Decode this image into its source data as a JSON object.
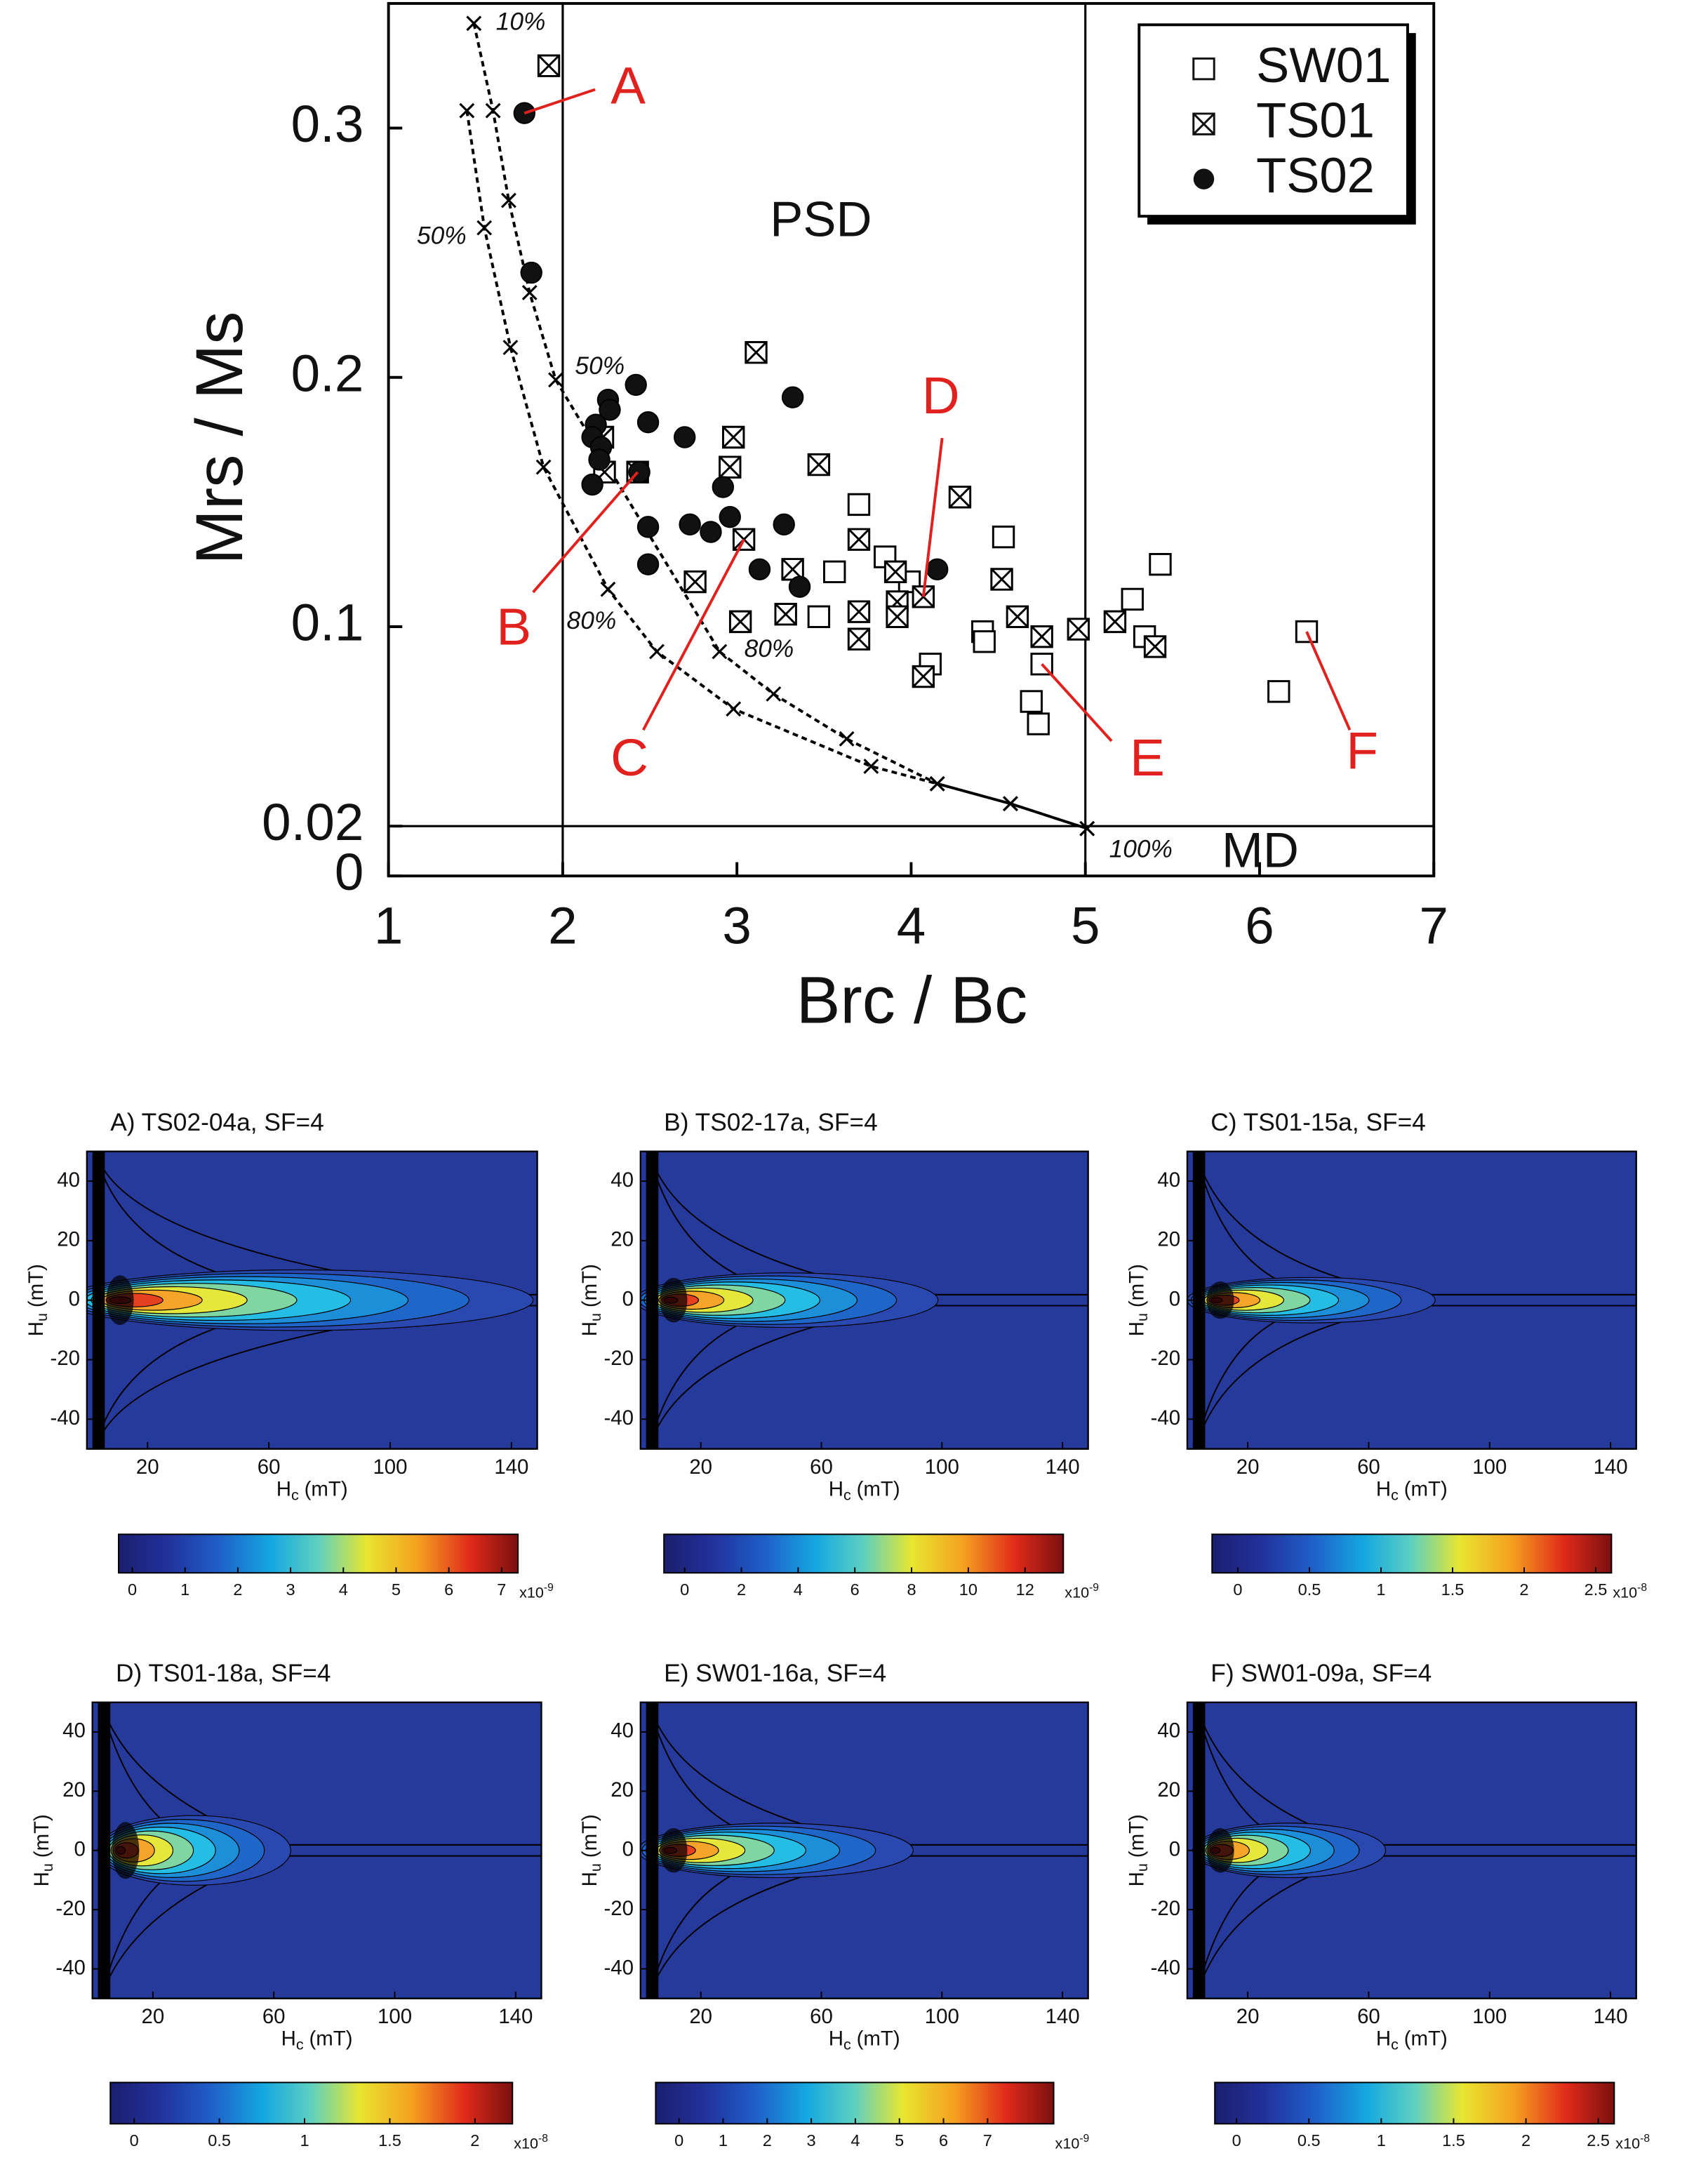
{
  "chart_data": [
    {
      "type": "scatter",
      "xlabel": "Brc / Bc",
      "ylabel": "Mrs / Ms",
      "xlim": [
        1,
        7
      ],
      "ylim": [
        0,
        0.35
      ],
      "xticks": [
        1,
        2,
        3,
        4,
        5,
        6,
        7
      ],
      "yticks": [
        0,
        0.02,
        0.1,
        0.2,
        0.3
      ],
      "reference_lines": {
        "x": [
          2,
          5
        ],
        "y": [
          0.02
        ]
      },
      "regions": [
        "PSD",
        "MD"
      ],
      "legend": "upper right",
      "series": [
        {
          "name": "SW01",
          "marker": "open-square",
          "color": "#000000",
          "x": [
            3.7,
            3.56,
            3.47,
            3.85,
            3.99,
            4.11,
            4.41,
            4.42,
            4.53,
            4.69,
            4.73,
            4.75,
            5.27,
            5.34,
            5.43,
            6.11,
            6.27
          ],
          "y": [
            0.149,
            0.122,
            0.104,
            0.128,
            0.118,
            0.085,
            0.098,
            0.094,
            0.136,
            0.07,
            0.061,
            0.085,
            0.111,
            0.096,
            0.125,
            0.074,
            0.098
          ]
        },
        {
          "name": "TS01",
          "marker": "crossed-square",
          "color": "#000000",
          "x": [
            1.92,
            2.23,
            2.24,
            2.43,
            2.98,
            2.96,
            2.76,
            3.04,
            3.11,
            3.02,
            3.32,
            3.28,
            3.47,
            3.7,
            3.7,
            3.7,
            3.91,
            3.92,
            3.92,
            4.07,
            4.07,
            4.28,
            4.52,
            4.61,
            4.75,
            4.96,
            5.17,
            5.4
          ],
          "y": [
            0.325,
            0.176,
            0.162,
            0.162,
            0.176,
            0.164,
            0.118,
            0.135,
            0.21,
            0.102,
            0.123,
            0.105,
            0.165,
            0.135,
            0.106,
            0.095,
            0.122,
            0.11,
            0.104,
            0.112,
            0.08,
            0.152,
            0.119,
            0.104,
            0.096,
            0.099,
            0.102,
            0.092
          ]
        },
        {
          "name": "TS02",
          "marker": "filled-circle",
          "color": "#000000",
          "x": [
            1.78,
            1.82,
            2.42,
            2.26,
            2.27,
            2.19,
            2.17,
            2.22,
            2.21,
            2.17,
            2.44,
            2.49,
            2.7,
            2.49,
            2.49,
            2.73,
            2.85,
            2.92,
            2.96,
            3.13,
            3.27,
            3.32,
            3.36,
            4.15
          ],
          "y": [
            0.306,
            0.242,
            0.197,
            0.191,
            0.187,
            0.181,
            0.176,
            0.172,
            0.167,
            0.157,
            0.162,
            0.182,
            0.176,
            0.14,
            0.125,
            0.141,
            0.138,
            0.156,
            0.144,
            0.123,
            0.141,
            0.192,
            0.116,
            0.123
          ]
        }
      ],
      "mixing_curves": [
        {
          "x": [
            1.45,
            1.55,
            1.7,
            1.89,
            2.26,
            2.54,
            2.98,
            3.77,
            4.15,
            4.57,
            5.01
          ],
          "y": [
            0.307,
            0.26,
            0.212,
            0.164,
            0.115,
            0.09,
            0.067,
            0.044,
            0.037,
            0.029,
            0.019
          ],
          "point_labels": [
            null,
            "50%",
            null,
            null,
            "80%",
            null,
            null,
            null,
            null,
            null,
            "100%"
          ]
        },
        {
          "x": [
            1.49,
            1.6,
            1.69,
            1.81,
            1.96,
            2.9,
            3.21,
            3.63,
            4.15,
            4.57,
            5.01
          ],
          "y": [
            0.342,
            0.307,
            0.271,
            0.234,
            0.199,
            0.09,
            0.073,
            0.055,
            0.037,
            0.029,
            0.019
          ],
          "point_labels": [
            "10%",
            null,
            null,
            null,
            "50%",
            "80%",
            null,
            null,
            null,
            null,
            null
          ]
        }
      ],
      "annotations": [
        "A",
        "B",
        "C",
        "D",
        "E",
        "F"
      ]
    },
    {
      "type": "forc",
      "title": "A) TS02-04a, SF=4",
      "xlabel": "H",
      "xlabel_sub": "c",
      "xlabel_unit": "(mT)",
      "ylabel": "H",
      "ylabel_sub": "u",
      "ylabel_unit": "(mT)",
      "xlim": [
        0,
        148.5
      ],
      "ylim": [
        -50,
        50
      ],
      "xticks": [
        20,
        60,
        100,
        140
      ],
      "yticks": [
        -40,
        -20,
        0,
        20,
        40
      ],
      "colorbar": {
        "lim": [
          -0.26,
          7.31
        ],
        "ticks": [
          0,
          1,
          2,
          3,
          4,
          5,
          6,
          7
        ],
        "scale_base": "x10",
        "scale_exp": "-9"
      }
    },
    {
      "type": "forc",
      "title": "B) TS02-17a, SF=4",
      "xlabel": "H",
      "xlabel_sub": "c",
      "xlabel_unit": "(mT)",
      "ylabel": "H",
      "ylabel_sub": "u",
      "ylabel_unit": "(mT)",
      "xlim": [
        0,
        148.5
      ],
      "ylim": [
        -50,
        50
      ],
      "xticks": [
        20,
        60,
        100,
        140
      ],
      "yticks": [
        -40,
        -20,
        0,
        20,
        40
      ],
      "colorbar": {
        "lim": [
          -0.73,
          13.35
        ],
        "ticks": [
          0,
          2,
          4,
          6,
          8,
          10,
          12
        ],
        "scale_base": "x10",
        "scale_exp": "-9"
      }
    },
    {
      "type": "forc",
      "title": "C) TS01-15a, SF=4",
      "xlabel": "H",
      "xlabel_sub": "c",
      "xlabel_unit": "(mT)",
      "ylabel": "H",
      "ylabel_sub": "u",
      "ylabel_unit": "(mT)",
      "xlim": [
        0,
        148.5
      ],
      "ylim": [
        -50,
        50
      ],
      "xticks": [
        20,
        60,
        100,
        140
      ],
      "yticks": [
        -40,
        -20,
        0,
        20,
        40
      ],
      "colorbar": {
        "lim": [
          -0.18,
          2.61
        ],
        "ticks": [
          0,
          0.5,
          1,
          1.5,
          2,
          2.5
        ],
        "scale_base": "x10",
        "scale_exp": "-8"
      }
    },
    {
      "type": "forc",
      "title": "D) TS01-18a, SF=4",
      "xlabel": "H",
      "xlabel_sub": "c",
      "xlabel_unit": "(mT)",
      "ylabel": "H",
      "ylabel_sub": "u",
      "ylabel_unit": "(mT)",
      "xlim": [
        0,
        148.5
      ],
      "ylim": [
        -50,
        50
      ],
      "xticks": [
        20,
        60,
        100,
        140
      ],
      "yticks": [
        -40,
        -20,
        0,
        20,
        40
      ],
      "colorbar": {
        "lim": [
          -0.14,
          2.22
        ],
        "ticks": [
          0,
          0.5,
          1,
          1.5,
          2
        ],
        "scale_base": "x10",
        "scale_exp": "-8"
      }
    },
    {
      "type": "forc",
      "title": "E) SW01-16a, SF=4",
      "xlabel": "H",
      "xlabel_sub": "c",
      "xlabel_unit": "(mT)",
      "ylabel": "H",
      "ylabel_sub": "u",
      "ylabel_unit": "(mT)",
      "xlim": [
        0,
        148.5
      ],
      "ylim": [
        -50,
        50
      ],
      "xticks": [
        20,
        60,
        100,
        140
      ],
      "yticks": [
        -40,
        -20,
        0,
        20,
        40
      ],
      "colorbar": {
        "lim": [
          -0.53,
          8.5
        ],
        "ticks": [
          0,
          1,
          2,
          3,
          4,
          5,
          6,
          7
        ],
        "scale_base": "x10",
        "scale_exp": "-9"
      }
    },
    {
      "type": "forc",
      "title": "F) SW01-09a, SF=4",
      "xlabel": "H",
      "xlabel_sub": "c",
      "xlabel_unit": "(mT)",
      "ylabel": "H",
      "ylabel_sub": "u",
      "ylabel_unit": "(mT)",
      "xlim": [
        0,
        148.5
      ],
      "ylim": [
        -50,
        50
      ],
      "xticks": [
        20,
        60,
        100,
        140
      ],
      "yticks": [
        -40,
        -20,
        0,
        20,
        40
      ],
      "colorbar": {
        "lim": [
          -0.15,
          2.61
        ],
        "ticks": [
          0,
          0.5,
          1,
          1.5,
          2,
          2.5
        ],
        "scale_base": "x10",
        "scale_exp": "-8"
      }
    }
  ]
}
